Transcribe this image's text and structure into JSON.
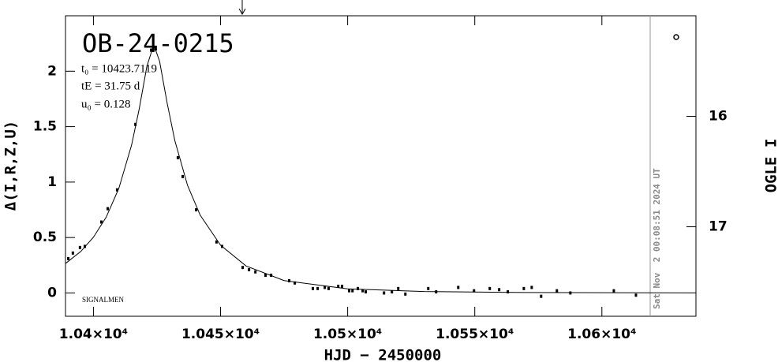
{
  "chart_data": {
    "type": "scatter",
    "title": "OB-24-0215",
    "params": [
      "t₀ = 10423.7119",
      "tE = 31.75 d",
      "u₀ = 0.128"
    ],
    "note": "SIGNALMEN",
    "x_label": "HJD − 2450000",
    "y_label": "Δ(I,R,Z,U)",
    "y2_label": "OGLE I",
    "date_line": {
      "x": 10619,
      "label": "Sat Nov  2 00:08:51 2024 UT"
    },
    "color": "#000000",
    "x": [
      10390.1,
      10391.9,
      10394.7,
      10396.6,
      10403.1,
      10405.6,
      10409.3,
      10416.5,
      10422.7,
      10424.5,
      10433.2,
      10435.1,
      10440.4,
      10448.4,
      10450.6,
      10458.7,
      10461.2,
      10463.7,
      10467.7,
      10469.9,
      10477,
      10479.2,
      10486.3,
      10488.2,
      10491,
      10492.5,
      10496.3,
      10497.8,
      10500.6,
      10501.9,
      10504,
      10505.9,
      10507.1,
      10514.3,
      10517.4,
      10519.9,
      10522.7,
      10531.7,
      10534.8,
      10543.5,
      10549.7,
      10555.9,
      10559.6,
      10563,
      10569.3,
      10572.4,
      10576.1,
      10582.3,
      10587.6,
      10604.7,
      10613.4
    ],
    "values": [
      0.31,
      0.36,
      0.41,
      0.42,
      0.64,
      0.76,
      0.93,
      1.52,
      2.19,
      2.2,
      1.22,
      1.05,
      0.75,
      0.46,
      0.42,
      0.23,
      0.21,
      0.19,
      0.16,
      0.16,
      0.11,
      0.09,
      0.04,
      0.04,
      0.05,
      0.04,
      0.06,
      0.06,
      0.02,
      0.02,
      0.04,
      0.02,
      0.01,
      0,
      0.01,
      0.04,
      -0.01,
      0.04,
      0.01,
      0.05,
      0.02,
      0.04,
      0.03,
      0.01,
      0.04,
      0.05,
      -0.03,
      0.02,
      0,
      0.02,
      -0.02
    ],
    "model_x": [
      10389,
      10395,
      10400,
      10405,
      10410,
      10415,
      10418,
      10421,
      10423.7,
      10426,
      10429,
      10432,
      10437,
      10442,
      10450,
      10460,
      10475,
      10500,
      10530,
      10570,
      10637
    ],
    "model_values": [
      0.266,
      0.374,
      0.503,
      0.683,
      0.944,
      1.334,
      1.66,
      2.042,
      2.239,
      2.091,
      1.712,
      1.375,
      0.971,
      0.701,
      0.431,
      0.244,
      0.112,
      0.037,
      0.013,
      0.004,
      0.001
    ],
    "xlim": [
      10389,
      10637
    ],
    "xticks": [
      {
        "value": 10400,
        "label": "1.04×10⁴"
      },
      {
        "value": 10450,
        "label": "1.045×10⁴"
      },
      {
        "value": 10500,
        "label": "1.05×10⁴"
      },
      {
        "value": 10550,
        "label": "1.055×10⁴"
      },
      {
        "value": 10600,
        "label": "1.06×10⁴"
      }
    ],
    "ylim": [
      -0.21,
      2.5
    ],
    "yticks": [
      0,
      0.5,
      1,
      1.5,
      2
    ],
    "y2lim": [
      17.81,
      15.09
    ],
    "y2ticks": [
      16,
      17
    ]
  }
}
